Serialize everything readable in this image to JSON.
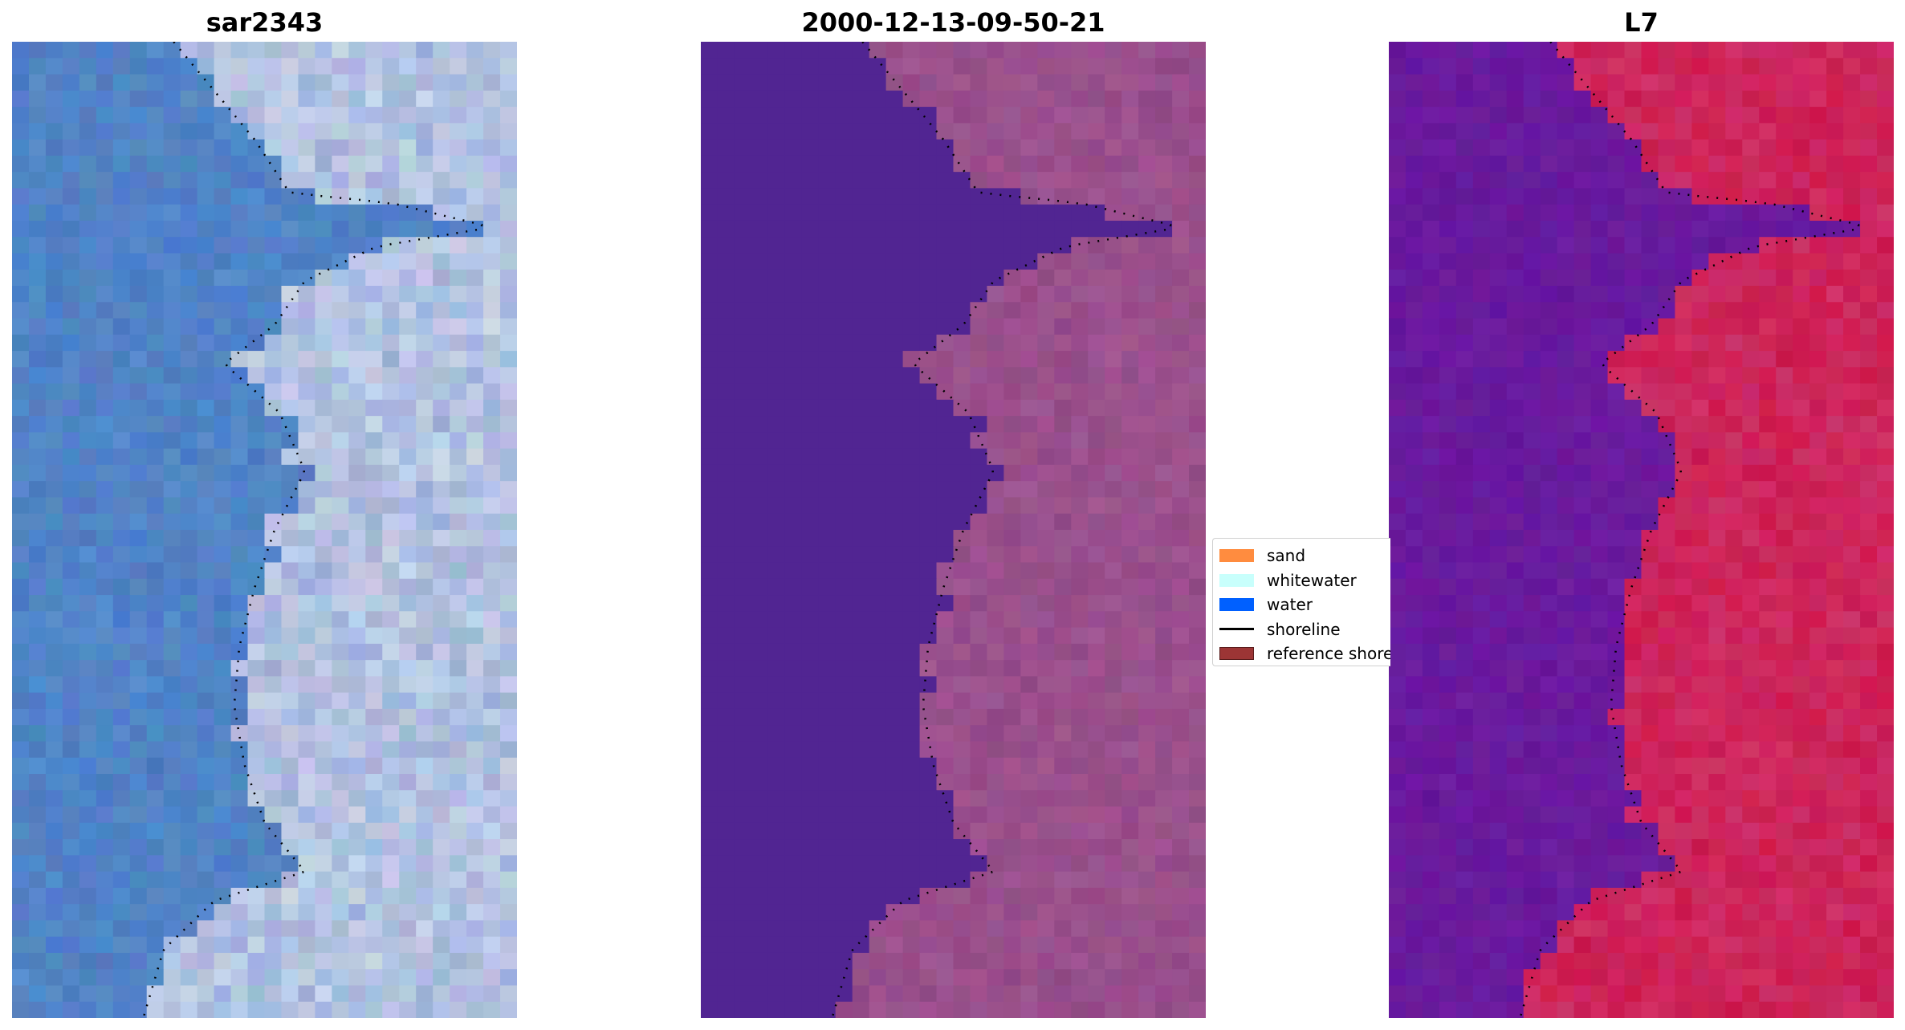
{
  "panels": [
    {
      "title": "sar2343",
      "palette": "rgb",
      "seed": 11
    },
    {
      "title": "2000-12-13-09-50-21",
      "palette": "classified",
      "seed": 23
    },
    {
      "title": "L7",
      "palette": "index",
      "seed": 37
    }
  ],
  "legend": {
    "items": [
      {
        "label": "sand",
        "type": "patch",
        "color": "#ff8c3f"
      },
      {
        "label": "whitewater",
        "type": "patch",
        "color": "#c8fffc"
      },
      {
        "label": "water",
        "type": "patch",
        "color": "#0060ff"
      },
      {
        "label": "shoreline",
        "type": "line",
        "color": "#000000"
      },
      {
        "label": "reference shoreline",
        "type": "patch",
        "color": "#9c3535",
        "edge": "#5a1c1c"
      }
    ]
  },
  "colors": {
    "rgb_water": "#4f7fc4",
    "rgb_land": "#9fb2d8",
    "class_water": "#512592",
    "class_land": "#924a86",
    "index_water": "#6c1ca0",
    "index_land": "#cc1a4e"
  }
}
